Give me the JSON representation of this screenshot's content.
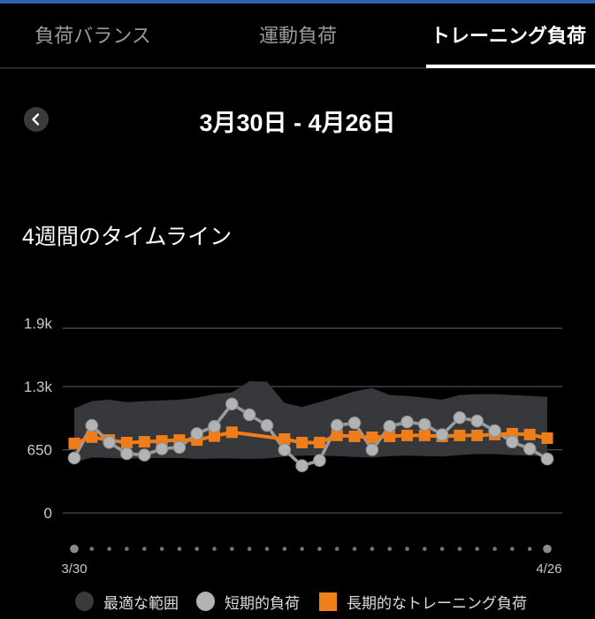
{
  "status_bar": {
    "color": "#2f62b3"
  },
  "tabs": {
    "items": [
      {
        "label": "負荷バランス",
        "selected": false
      },
      {
        "label": "運動負荷",
        "selected": false
      },
      {
        "label": "トレーニング負荷",
        "selected": true
      }
    ]
  },
  "header": {
    "back_icon": "chevron-left",
    "title": "3月30日 - 4月26日"
  },
  "section": {
    "title": "4週間のタイムライン"
  },
  "chart_data": {
    "type": "line",
    "title": "4週間のタイムライン",
    "num_days": 28,
    "x_start_label": "3/30",
    "x_end_label": "4/26",
    "y_ticks": [
      {
        "label": "1.9k",
        "value": 1900
      },
      {
        "label": "1.3k",
        "value": 1300
      },
      {
        "label": "650",
        "value": 650
      },
      {
        "label": "0",
        "value": 0
      }
    ],
    "ylim": [
      0,
      2200
    ],
    "grid": "horizontal",
    "legend_position": "bottom",
    "colors": {
      "band": "#36373a",
      "band_hatch": "#38393c",
      "grid": "#4d4d4d",
      "tick_label": "#c9c9c9",
      "gray_line": "#9c9c9c",
      "dot_fill": "#b2b3b5",
      "dot_stroke": "#8a8a8a",
      "orange": "#ef7d1a",
      "axis_dot_big": "#8a8a8a",
      "axis_dot_small": "#757575"
    },
    "series": [
      {
        "name": "最適な範囲",
        "type": "band",
        "top": [
          1075,
          1150,
          1165,
          1140,
          1150,
          1157,
          1165,
          1185,
          1222,
          1240,
          1355,
          1350,
          1130,
          1090,
          1140,
          1195,
          1250,
          1285,
          1212,
          1203,
          1185,
          1165,
          1212,
          1222,
          1222,
          1212,
          1203,
          1195
        ],
        "bottom": [
          520,
          570,
          565,
          560,
          560,
          565,
          565,
          555,
          560,
          560,
          555,
          560,
          580,
          590,
          590,
          585,
          575,
          570,
          585,
          590,
          585,
          580,
          595,
          605,
          605,
          595,
          590,
          585
        ]
      },
      {
        "name": "短期的負荷",
        "type": "line_dots",
        "values": [
          565,
          900,
          725,
          610,
          595,
          660,
          675,
          815,
          890,
          1120,
          1010,
          900,
          650,
          485,
          540,
          900,
          925,
          650,
          890,
          935,
          910,
          805,
          980,
          945,
          845,
          730,
          660,
          555
        ]
      },
      {
        "name": "長期的なトレーニング負荷",
        "type": "line_squares",
        "values": [
          715,
          780,
          750,
          723,
          732,
          741,
          750,
          750,
          790,
          830,
          null,
          null,
          760,
          723,
          723,
          797,
          787,
          778,
          787,
          797,
          797,
          787,
          797,
          797,
          806,
          815,
          806,
          769
        ]
      }
    ]
  },
  "legend": {
    "items": [
      {
        "label": "最適な範囲",
        "marker": "circle",
        "color": "#3a3a3a"
      },
      {
        "label": "短期的負荷",
        "marker": "circle",
        "color": "#b3b3b3"
      },
      {
        "label": "長期的なトレーニング負荷",
        "marker": "square",
        "color": "#f08019"
      }
    ]
  }
}
